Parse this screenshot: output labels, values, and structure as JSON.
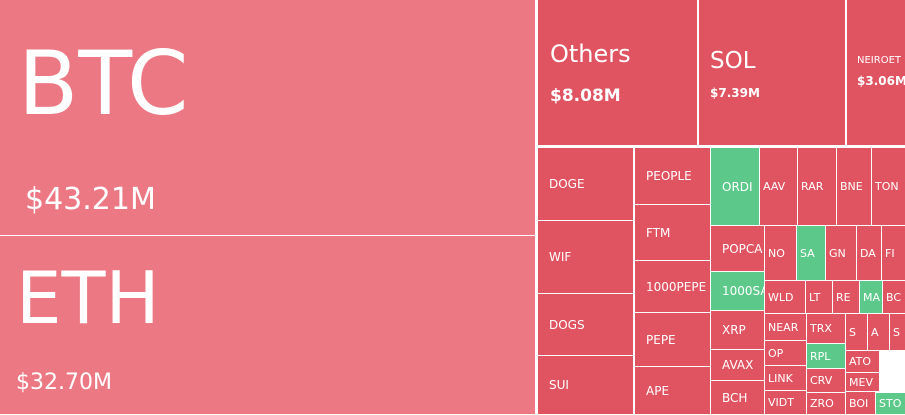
{
  "tiles": [
    {
      "label": "BTC",
      "value": "$43.21M"
    },
    {
      "label": "ETH",
      "value": "$32.70M"
    },
    {
      "label": "Others",
      "value": "$8.08M"
    },
    {
      "label": "SOL",
      "value": "$7.39M"
    },
    {
      "label": "NEIROET",
      "value": "$3.06M"
    },
    {
      "label": "DOGE"
    },
    {
      "label": "WIF"
    },
    {
      "label": "DOGS"
    },
    {
      "label": "SUI"
    },
    {
      "label": "PEOPLE"
    },
    {
      "label": "FTM"
    },
    {
      "label": "1000PEPE"
    },
    {
      "label": "PEPE"
    },
    {
      "label": "APE"
    },
    {
      "label": "ORDI"
    },
    {
      "label": "POPCA"
    },
    {
      "label": "1000SA"
    },
    {
      "label": "XRP"
    },
    {
      "label": "AVAX"
    },
    {
      "label": "BCH"
    },
    {
      "label": "AAV"
    },
    {
      "label": "RAR"
    },
    {
      "label": "BNE"
    },
    {
      "label": "TON"
    },
    {
      "label": "NO"
    },
    {
      "label": "SA"
    },
    {
      "label": "GN"
    },
    {
      "label": "DA"
    },
    {
      "label": "FI"
    },
    {
      "label": "WLD"
    },
    {
      "label": "LT"
    },
    {
      "label": "RE"
    },
    {
      "label": "MA"
    },
    {
      "label": "BC"
    },
    {
      "label": "NEAR"
    },
    {
      "label": "OP"
    },
    {
      "label": "LINK"
    },
    {
      "label": "VIDT"
    },
    {
      "label": "TRX"
    },
    {
      "label": "RPL"
    },
    {
      "label": "CRV"
    },
    {
      "label": "ZRO"
    },
    {
      "label": "S"
    },
    {
      "label": "A"
    },
    {
      "label": "S"
    },
    {
      "label": "ATO"
    },
    {
      "label": "MEV"
    },
    {
      "label": "BOI"
    },
    {
      "label": "STO"
    }
  ]
}
